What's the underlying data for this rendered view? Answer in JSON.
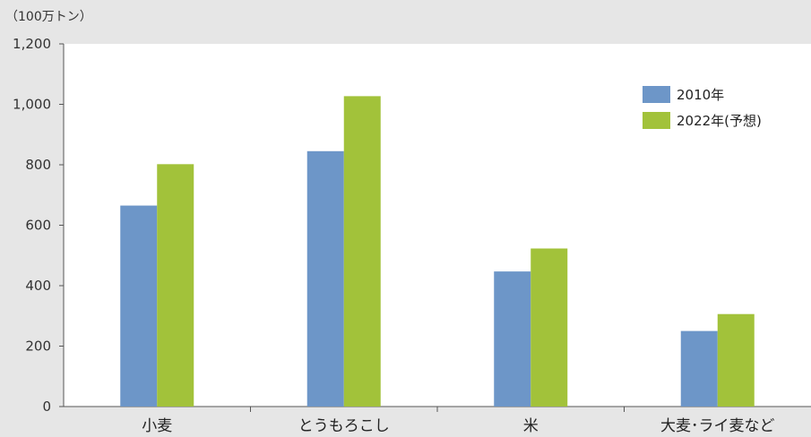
{
  "chart_data": {
    "type": "bar",
    "unit_label": "（100万トン）",
    "categories": [
      "小麦",
      "とうもろこし",
      "米",
      "大麦･ライ麦など"
    ],
    "series": [
      {
        "name": "2010年",
        "color": "#6d96c8",
        "values": [
          665,
          845,
          447,
          250
        ]
      },
      {
        "name": "2022年(予想)",
        "color": "#a2c23a",
        "values": [
          802,
          1027,
          523,
          306
        ]
      }
    ],
    "yticks": [
      "0",
      "200",
      "400",
      "600",
      "800",
      "1,000",
      "1,200"
    ],
    "ylim": [
      0,
      1200
    ],
    "legend_position": "top-right",
    "plot_background": "#ffffff",
    "page_background": "#e6e6e6",
    "grid": false
  }
}
